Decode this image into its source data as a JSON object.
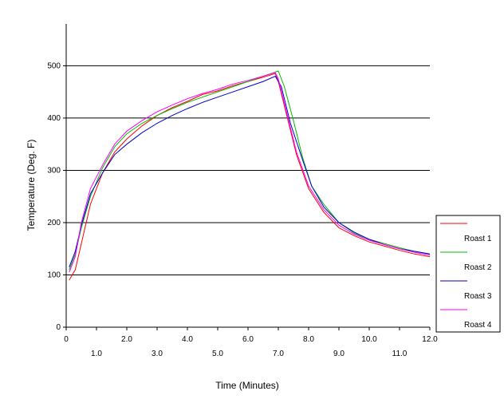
{
  "chart_data": {
    "type": "line",
    "xlabel": "Time (Minutes)",
    "ylabel": "Temperature (Deg. F)",
    "xlim": [
      0,
      12
    ],
    "ylim": [
      0,
      580
    ],
    "x_ticks_upper": [
      "0",
      "2.0",
      "4.0",
      "6.0",
      "8.0",
      "10.0",
      "12.0"
    ],
    "x_ticks_lower": [
      "1.0",
      "3.0",
      "5.0",
      "7.0",
      "9.0",
      "11.0"
    ],
    "y_ticks": [
      "0",
      "100",
      "200",
      "300",
      "400",
      "500"
    ],
    "grid": true,
    "legend_position": "right",
    "series": [
      {
        "name": "Roast 1",
        "color": "#ff0000",
        "points": [
          [
            0.1,
            90
          ],
          [
            0.3,
            110
          ],
          [
            0.5,
            160
          ],
          [
            0.8,
            235
          ],
          [
            1.2,
            295
          ],
          [
            1.6,
            335
          ],
          [
            2,
            360
          ],
          [
            2.5,
            385
          ],
          [
            3,
            405
          ],
          [
            3.5,
            420
          ],
          [
            4,
            432
          ],
          [
            4.5,
            445
          ],
          [
            5,
            452
          ],
          [
            5.5,
            462
          ],
          [
            6,
            470
          ],
          [
            6.5,
            478
          ],
          [
            6.9,
            485
          ],
          [
            7,
            470
          ],
          [
            7.3,
            400
          ],
          [
            7.6,
            330
          ],
          [
            8,
            265
          ],
          [
            8.5,
            220
          ],
          [
            9,
            190
          ],
          [
            9.5,
            175
          ],
          [
            10,
            163
          ],
          [
            10.5,
            155
          ],
          [
            11,
            147
          ],
          [
            11.5,
            140
          ],
          [
            12,
            135
          ]
        ]
      },
      {
        "name": "Roast 2",
        "color": "#00bb00",
        "points": [
          [
            0.1,
            110
          ],
          [
            0.3,
            140
          ],
          [
            0.5,
            190
          ],
          [
            0.8,
            250
          ],
          [
            1.2,
            305
          ],
          [
            1.6,
            345
          ],
          [
            2,
            370
          ],
          [
            2.5,
            390
          ],
          [
            3,
            405
          ],
          [
            3.5,
            418
          ],
          [
            4,
            430
          ],
          [
            4.5,
            440
          ],
          [
            5,
            450
          ],
          [
            5.5,
            460
          ],
          [
            6,
            470
          ],
          [
            6.5,
            480
          ],
          [
            7,
            490
          ],
          [
            7.2,
            460
          ],
          [
            7.5,
            395
          ],
          [
            7.8,
            325
          ],
          [
            8.1,
            270
          ],
          [
            8.5,
            235
          ],
          [
            9,
            200
          ],
          [
            9.5,
            180
          ],
          [
            10,
            168
          ],
          [
            10.5,
            160
          ],
          [
            11,
            152
          ],
          [
            11.5,
            145
          ],
          [
            12,
            140
          ]
        ]
      },
      {
        "name": "Roast 3",
        "color": "#0000cc",
        "points": [
          [
            0.1,
            115
          ],
          [
            0.3,
            145
          ],
          [
            0.5,
            195
          ],
          [
            0.8,
            255
          ],
          [
            1.2,
            295
          ],
          [
            1.6,
            330
          ],
          [
            2,
            350
          ],
          [
            2.5,
            372
          ],
          [
            3,
            390
          ],
          [
            3.5,
            405
          ],
          [
            4,
            418
          ],
          [
            4.5,
            430
          ],
          [
            5,
            440
          ],
          [
            5.5,
            450
          ],
          [
            6,
            460
          ],
          [
            6.5,
            470
          ],
          [
            6.9,
            480
          ],
          [
            7.1,
            460
          ],
          [
            7.4,
            390
          ],
          [
            7.8,
            320
          ],
          [
            8.1,
            270
          ],
          [
            8.5,
            230
          ],
          [
            9,
            200
          ],
          [
            9.5,
            182
          ],
          [
            10,
            168
          ],
          [
            10.5,
            158
          ],
          [
            11,
            150
          ],
          [
            11.5,
            145
          ],
          [
            12,
            140
          ]
        ]
      },
      {
        "name": "Roast 4",
        "color": "#ff00ff",
        "points": [
          [
            0.1,
            105
          ],
          [
            0.3,
            135
          ],
          [
            0.5,
            200
          ],
          [
            0.8,
            265
          ],
          [
            1.2,
            310
          ],
          [
            1.6,
            350
          ],
          [
            2,
            375
          ],
          [
            2.5,
            395
          ],
          [
            3,
            412
          ],
          [
            3.5,
            425
          ],
          [
            4,
            437
          ],
          [
            4.5,
            447
          ],
          [
            5,
            455
          ],
          [
            5.5,
            465
          ],
          [
            6,
            472
          ],
          [
            6.5,
            480
          ],
          [
            6.9,
            487
          ],
          [
            7,
            475
          ],
          [
            7.3,
            405
          ],
          [
            7.6,
            335
          ],
          [
            8,
            270
          ],
          [
            8.5,
            225
          ],
          [
            9,
            195
          ],
          [
            9.5,
            178
          ],
          [
            10,
            166
          ],
          [
            10.5,
            158
          ],
          [
            11,
            150
          ],
          [
            11.5,
            143
          ],
          [
            12,
            138
          ]
        ]
      }
    ]
  }
}
